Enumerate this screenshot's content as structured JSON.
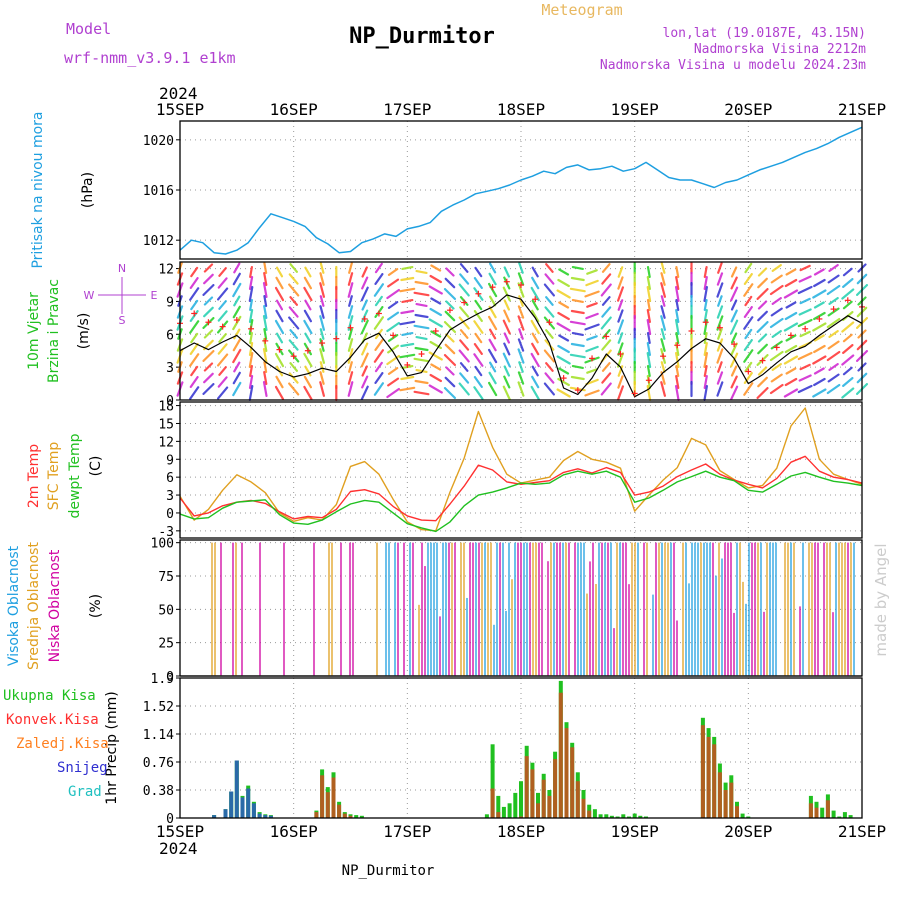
{
  "header": {
    "model_label": "Model",
    "model_name": "wrf-nmm_v3.9.1 e1km",
    "station": "NP_Durmitor",
    "product": "Meteogram",
    "lonlat": "lon,lat (19.0187E, 43.15N)",
    "elevation": "Nadmorska Visina 2212m",
    "model_elevation": "Nadmorska Visina u modelu 2024.23m",
    "year_top": "2024",
    "year_bottom": "2024",
    "footer": "NP_Durmitor",
    "watermark": "made by Angel"
  },
  "colors": {
    "header_purple": "#b040d0",
    "product_orange": "#e8b860",
    "pressure": "#1e9fe0",
    "wind_label": "#20c020",
    "wind_speed": "#000000",
    "gust_marker": "#ff2020",
    "temp2m": "#ff3030",
    "sfc_temp": "#e0a020",
    "dewpt": "#20c020",
    "cloud_high": "#1e9fe0",
    "cloud_mid": "#e0a020",
    "cloud_low": "#d000a0",
    "rain_total": "#20c020",
    "rain_conv": "#ff3030",
    "frz_rain": "#ff8020",
    "snow": "#3030d0",
    "hail": "#20c0c0",
    "watermark": "#cccccc"
  },
  "chart_data": [
    {
      "type": "line",
      "panel": "pressure",
      "ylabel_lines": [
        "Pritisak na nivou mora"
      ],
      "unit": "(hPa)",
      "ylim": [
        1010.5,
        1021.5
      ],
      "yticks": [
        1012,
        1016,
        1020
      ],
      "x_days": [
        "15SEP",
        "16SEP",
        "17SEP",
        "18SEP",
        "19SEP",
        "20SEP",
        "21SEP"
      ],
      "grid": true,
      "x": [
        0,
        0.1,
        0.2,
        0.3,
        0.4,
        0.5,
        0.6,
        0.7,
        0.8,
        0.9,
        1.0,
        1.1,
        1.2,
        1.3,
        1.4,
        1.5,
        1.6,
        1.7,
        1.8,
        1.9,
        2.0,
        2.1,
        2.2,
        2.3,
        2.4,
        2.5,
        2.6,
        2.7,
        2.8,
        2.9,
        3.0,
        3.1,
        3.2,
        3.3,
        3.4,
        3.5,
        3.6,
        3.7,
        3.8,
        3.9,
        4.0,
        4.1,
        4.2,
        4.3,
        4.4,
        4.5,
        4.6,
        4.7,
        4.8,
        4.9,
        5.0,
        5.1,
        5.2,
        5.3,
        5.4,
        5.5,
        5.6,
        5.7,
        5.8,
        5.9,
        6.0
      ],
      "y": [
        1011.2,
        1012.0,
        1011.8,
        1011.0,
        1010.9,
        1011.2,
        1011.8,
        1013.0,
        1014.1,
        1013.8,
        1013.5,
        1013.1,
        1012.2,
        1011.7,
        1011.0,
        1011.1,
        1011.8,
        1012.1,
        1012.5,
        1012.3,
        1012.9,
        1013.1,
        1013.4,
        1014.3,
        1014.8,
        1015.2,
        1015.7,
        1015.9,
        1016.1,
        1016.4,
        1016.8,
        1017.1,
        1017.5,
        1017.3,
        1017.8,
        1018.0,
        1017.6,
        1017.7,
        1017.9,
        1017.5,
        1017.7,
        1018.2,
        1017.6,
        1017.0,
        1016.8,
        1016.8,
        1016.5,
        1016.2,
        1016.6,
        1016.8,
        1017.2,
        1017.6,
        1017.9,
        1018.2,
        1018.6,
        1019.0,
        1019.3,
        1019.7,
        1020.2,
        1020.6,
        1021.0
      ]
    },
    {
      "type": "line",
      "panel": "wind",
      "ylabel_lines": [
        "10m Vjetar",
        "Brzina i Pravac"
      ],
      "unit": "(m/s)",
      "direction_key": [
        "N",
        "S",
        "W",
        "E"
      ],
      "ylim": [
        0,
        12.6
      ],
      "yticks": [
        0,
        3,
        6,
        9,
        12
      ],
      "grid": true,
      "x": [
        0,
        0.125,
        0.25,
        0.375,
        0.5,
        0.625,
        0.75,
        0.875,
        1.0,
        1.125,
        1.25,
        1.375,
        1.5,
        1.625,
        1.75,
        1.875,
        2.0,
        2.125,
        2.25,
        2.375,
        2.5,
        2.625,
        2.75,
        2.875,
        3.0,
        3.125,
        3.25,
        3.375,
        3.5,
        3.625,
        3.75,
        3.875,
        4.0,
        4.125,
        4.25,
        4.375,
        4.5,
        4.625,
        4.75,
        4.875,
        5.0,
        5.125,
        5.25,
        5.375,
        5.5,
        5.625,
        5.75,
        5.875,
        6.0
      ],
      "speed": [
        4.5,
        5.2,
        4.6,
        5.3,
        5.9,
        4.8,
        3.5,
        2.6,
        2.1,
        2.4,
        2.9,
        2.6,
        3.9,
        5.5,
        6.1,
        4.4,
        2.2,
        2.5,
        4.5,
        6.4,
        7.2,
        7.9,
        8.5,
        9.6,
        9.2,
        7.5,
        5.2,
        1.1,
        0.5,
        2.0,
        4.2,
        3.0,
        0.3,
        1.0,
        2.5,
        3.5,
        4.7,
        5.6,
        5.2,
        3.8,
        1.5,
        2.3,
        3.4,
        4.4,
        4.9,
        5.9,
        6.8,
        7.7,
        7.0
      ],
      "gust": [
        7.0,
        7.9,
        7.1,
        6.7,
        7.3,
        6.5,
        5.4,
        4.6,
        4.0,
        4.5,
        5.2,
        5.6,
        6.6,
        7.4,
        7.9,
        5.9,
        3.2,
        4.2,
        6.3,
        8.2,
        8.9,
        9.7,
        10.3,
        10.8,
        10.5,
        9.2,
        7.1,
        2.0,
        0.9,
        3.8,
        5.8,
        4.2,
        0.6,
        1.8,
        4.0,
        5.0,
        6.3,
        7.1,
        6.6,
        5.1,
        2.6,
        3.6,
        4.8,
        5.9,
        6.5,
        7.4,
        8.3,
        9.1,
        8.5
      ],
      "direction_deg": [
        200,
        215,
        225,
        220,
        210,
        190,
        170,
        150,
        140,
        150,
        165,
        180,
        195,
        205,
        215,
        235,
        260,
        280,
        300,
        315,
        320,
        325,
        330,
        335,
        340,
        330,
        320,
        300,
        280,
        250,
        220,
        200,
        180,
        170,
        165,
        170,
        180,
        190,
        200,
        205,
        215,
        225,
        235,
        240,
        245,
        240,
        235,
        230,
        225
      ]
    },
    {
      "type": "line",
      "panel": "temperature",
      "ylabel_lines": [
        "2m Temp",
        "SFC Temp",
        "dewpt Temp"
      ],
      "unit": "(C)",
      "ylim": [
        -4.2,
        18.6
      ],
      "yticks": [
        -3,
        0,
        3,
        6,
        9,
        12,
        15,
        18
      ],
      "grid": true,
      "x": [
        0,
        0.125,
        0.25,
        0.375,
        0.5,
        0.625,
        0.75,
        0.875,
        1.0,
        1.125,
        1.25,
        1.375,
        1.5,
        1.625,
        1.75,
        1.875,
        2.0,
        2.125,
        2.25,
        2.375,
        2.5,
        2.625,
        2.75,
        2.875,
        3.0,
        3.125,
        3.25,
        3.375,
        3.5,
        3.625,
        3.75,
        3.875,
        4.0,
        4.125,
        4.25,
        4.375,
        4.5,
        4.625,
        4.75,
        4.875,
        5.0,
        5.125,
        5.25,
        5.375,
        5.5,
        5.625,
        5.75,
        5.875,
        6.0
      ],
      "series": [
        {
          "name": "2m Temp",
          "values": [
            2.5,
            -0.5,
            0.0,
            1.2,
            1.8,
            2.1,
            1.6,
            0.2,
            -1.0,
            -0.6,
            -0.8,
            0.6,
            3.6,
            3.9,
            3.2,
            1.1,
            -0.5,
            -1.2,
            -1.3,
            1.5,
            4.5,
            8.0,
            7.2,
            5.2,
            4.8,
            5.1,
            5.4,
            6.8,
            7.4,
            6.7,
            7.6,
            6.8,
            3.0,
            3.5,
            4.5,
            6.1,
            7.2,
            8.2,
            6.5,
            5.5,
            4.8,
            4.2,
            5.8,
            8.5,
            9.5,
            7.0,
            6.0,
            5.6,
            5.0
          ]
        },
        {
          "name": "SFC Temp",
          "values": [
            2.8,
            -1.2,
            0.6,
            3.8,
            6.4,
            5.2,
            3.4,
            0.0,
            -1.4,
            -0.8,
            -1.2,
            1.4,
            7.8,
            8.6,
            6.5,
            2.3,
            -1.5,
            -2.8,
            -3.0,
            3.5,
            9.2,
            17.0,
            11.0,
            6.5,
            5.0,
            5.5,
            6.0,
            8.8,
            10.3,
            9.0,
            8.5,
            7.5,
            0.3,
            3.0,
            5.5,
            7.6,
            12.5,
            11.4,
            7.1,
            5.6,
            4.2,
            4.6,
            7.5,
            14.6,
            17.6,
            9.0,
            6.5,
            5.6,
            4.8
          ]
        },
        {
          "name": "dewpt Temp",
          "values": [
            -0.2,
            -1.0,
            -0.8,
            0.8,
            1.8,
            2.0,
            2.2,
            -0.3,
            -1.7,
            -1.9,
            -1.2,
            0.2,
            1.5,
            2.1,
            1.8,
            0.0,
            -1.8,
            -2.5,
            -3.1,
            -1.5,
            1.2,
            3.0,
            3.5,
            4.2,
            5.0,
            4.8,
            5.0,
            6.4,
            7.0,
            6.5,
            7.0,
            6.0,
            1.8,
            2.5,
            3.8,
            5.2,
            6.1,
            7.0,
            6.0,
            5.4,
            3.8,
            3.5,
            4.8,
            6.2,
            6.8,
            6.0,
            5.3,
            5.0,
            4.6
          ]
        }
      ]
    },
    {
      "type": "bar",
      "panel": "cloud",
      "ylabel_lines": [
        "Visoka Oblacnost",
        "Srednja Oblacnost",
        "Niska Oblacnost"
      ],
      "unit": "(%)",
      "ylim": [
        0,
        102
      ],
      "yticks": [
        0,
        25,
        50,
        75,
        100
      ],
      "grid": true,
      "series_names": [
        "Visoka Oblacnost",
        "Srednja Oblacnost",
        "Niska Oblacnost"
      ]
    },
    {
      "type": "bar",
      "panel": "precip",
      "ylabel": "1hr Precip (mm)",
      "legend": [
        "Ukupna Kisa",
        "Konvek.Kisa",
        "Zaledj.Kisa",
        "Snijeg",
        "Grad"
      ],
      "ylim": [
        0,
        1.9
      ],
      "yticks": [
        "0",
        "0.38",
        "0.76",
        "1.14",
        "1.52",
        "1.9"
      ],
      "grid": true,
      "x": [
        0.3,
        0.4,
        0.45,
        0.5,
        0.55,
        0.6,
        0.65,
        0.7,
        0.75,
        0.8,
        1.2,
        1.25,
        1.3,
        1.35,
        1.4,
        1.45,
        1.5,
        1.55,
        1.6,
        2.7,
        2.75,
        2.8,
        2.85,
        2.9,
        2.95,
        3.0,
        3.05,
        3.1,
        3.15,
        3.2,
        3.25,
        3.3,
        3.35,
        3.4,
        3.45,
        3.5,
        3.55,
        3.6,
        3.65,
        3.7,
        3.75,
        3.8,
        3.85,
        3.9,
        3.95,
        4.0,
        4.05,
        4.1,
        4.6,
        4.65,
        4.7,
        4.75,
        4.8,
        4.85,
        4.9,
        4.95,
        5.0,
        5.55,
        5.6,
        5.65,
        5.7,
        5.75,
        5.8,
        5.85,
        5.9
      ],
      "total": [
        0.04,
        0.12,
        0.36,
        0.78,
        0.3,
        0.44,
        0.22,
        0.08,
        0.05,
        0.04,
        0.1,
        0.66,
        0.42,
        0.62,
        0.22,
        0.08,
        0.05,
        0.04,
        0.03,
        0.05,
        1.0,
        0.3,
        0.15,
        0.2,
        0.34,
        0.5,
        0.98,
        0.75,
        0.34,
        0.6,
        0.38,
        0.9,
        1.86,
        1.3,
        1.02,
        0.62,
        0.38,
        0.18,
        0.12,
        0.05,
        0.05,
        0.03,
        0.02,
        0.05,
        0.02,
        0.06,
        0.03,
        0.02,
        1.36,
        1.22,
        1.1,
        0.74,
        0.48,
        0.58,
        0.22,
        0.06,
        0.02,
        0.3,
        0.22,
        0.14,
        0.32,
        0.1,
        0.02,
        0.08,
        0.04
      ],
      "convective": [
        0,
        0,
        0,
        0,
        0,
        0,
        0,
        0,
        0,
        0,
        0.08,
        0.58,
        0.35,
        0.55,
        0.18,
        0.06,
        0.03,
        0,
        0,
        0,
        0.4,
        0.08,
        0,
        0,
        0,
        0.02,
        0.84,
        0.66,
        0.2,
        0.52,
        0.3,
        0.8,
        1.7,
        1.22,
        0.96,
        0.5,
        0.26,
        0.1,
        0,
        0,
        0,
        0,
        0,
        0,
        0,
        0,
        0,
        0,
        1.26,
        1.1,
        1.0,
        0.62,
        0.38,
        0.48,
        0.16,
        0,
        0,
        0.2,
        0.14,
        0,
        0.24,
        0,
        0,
        0,
        0
      ],
      "snow": [
        0.04,
        0.12,
        0.36,
        0.78,
        0.28,
        0.4,
        0.2,
        0.06,
        0.04,
        0.03,
        0,
        0,
        0,
        0,
        0,
        0,
        0,
        0,
        0,
        0,
        0,
        0,
        0,
        0,
        0,
        0,
        0,
        0,
        0,
        0,
        0,
        0,
        0,
        0,
        0,
        0,
        0,
        0,
        0,
        0,
        0,
        0,
        0,
        0,
        0,
        0,
        0,
        0,
        0,
        0,
        0,
        0,
        0,
        0,
        0,
        0,
        0,
        0,
        0,
        0,
        0,
        0,
        0,
        0,
        0
      ]
    }
  ]
}
